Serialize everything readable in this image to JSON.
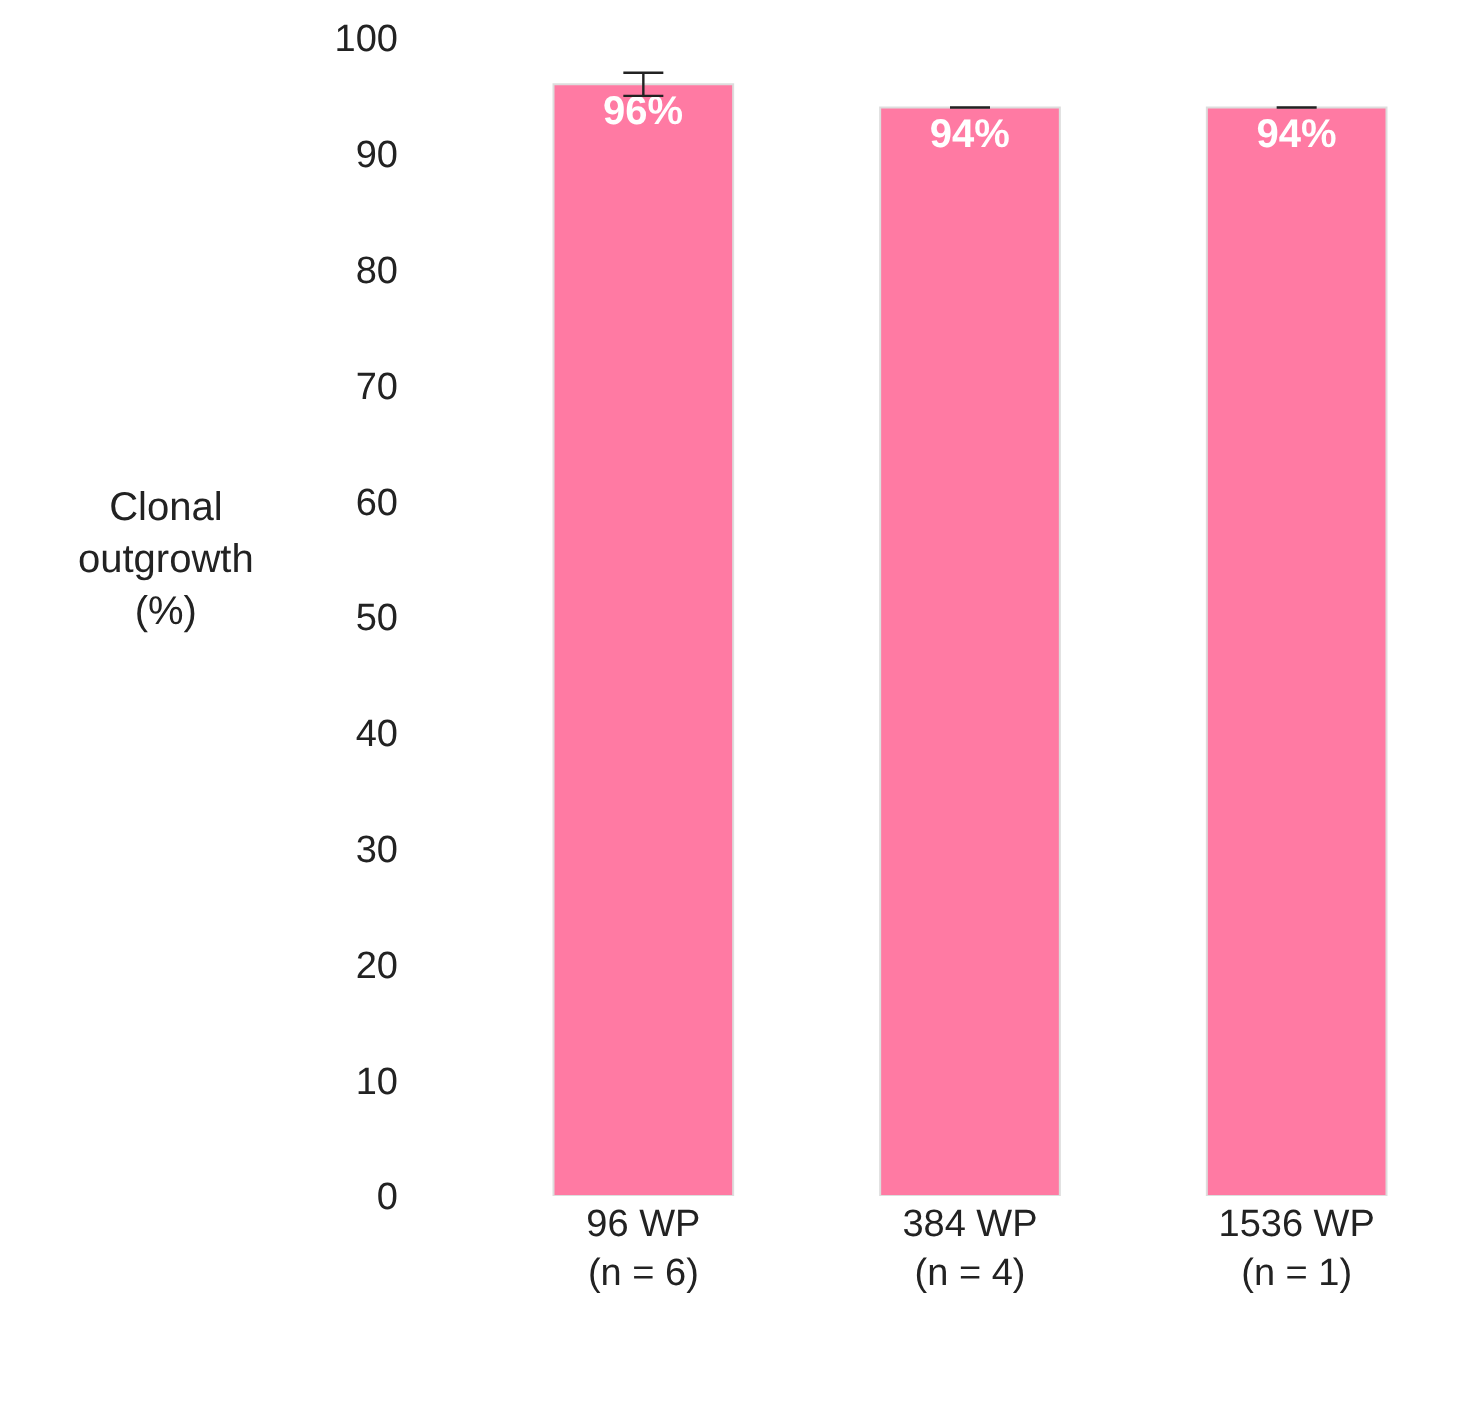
{
  "chart_data": {
    "type": "bar",
    "ylabel": "Clonal outgrowth (%)",
    "categories": [
      "96 WP\n(n = 6)",
      "384 WP\n(n = 4)",
      "1536 WP\n(n = 1)"
    ],
    "values": [
      96,
      94,
      94
    ],
    "errors": [
      1,
      0,
      0
    ],
    "value_labels": [
      "96%",
      "94%",
      "94%"
    ],
    "color": "#ff7aa3",
    "ylim": [
      0,
      100
    ],
    "yticks": [
      0,
      10,
      20,
      30,
      40,
      50,
      60,
      70,
      80,
      90,
      100
    ],
    "legend": false
  }
}
